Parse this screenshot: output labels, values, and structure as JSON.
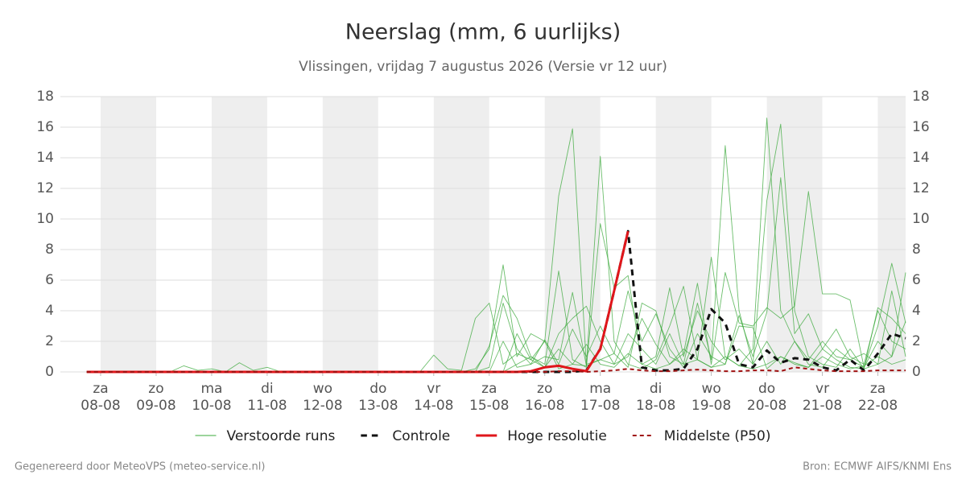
{
  "chart_data": {
    "type": "line",
    "title": "Neerslag (mm, 6 uurlijks)",
    "subtitle": "Vlissingen, vrijdag  7 augustus 2026 (Versie vr 12 uur)",
    "credit": "Gegenereerd door MeteoVPS (meteo-service.nl)",
    "source": "Bron: ECMWF AIFS/KNMI Ens",
    "grid": true,
    "xlim": [
      -0.725,
      14.5
    ],
    "xticks": [
      {
        "value": 0,
        "label": "za",
        "date": "08-08"
      },
      {
        "value": 1,
        "label": "zo",
        "date": "09-08"
      },
      {
        "value": 2,
        "label": "ma",
        "date": "10-08"
      },
      {
        "value": 3,
        "label": "di",
        "date": "11-08"
      },
      {
        "value": 4,
        "label": "wo",
        "date": "12-08"
      },
      {
        "value": 5,
        "label": "do",
        "date": "13-08"
      },
      {
        "value": 6,
        "label": "vr",
        "date": "14-08"
      },
      {
        "value": 7,
        "label": "za",
        "date": "15-08"
      },
      {
        "value": 8,
        "label": "zo",
        "date": "16-08"
      },
      {
        "value": 9,
        "label": "ma",
        "date": "17-08"
      },
      {
        "value": 10,
        "label": "di",
        "date": "18-08"
      },
      {
        "value": 11,
        "label": "wo",
        "date": "19-08"
      },
      {
        "value": 12,
        "label": "do",
        "date": "20-08"
      },
      {
        "value": 13,
        "label": "vr",
        "date": "21-08"
      },
      {
        "value": 14,
        "label": "za",
        "date": "22-08"
      }
    ],
    "ylim": [
      0,
      18
    ],
    "yticks": [
      0,
      2,
      4,
      6,
      8,
      10,
      12,
      14,
      16,
      18
    ],
    "x": [
      -0.25,
      0,
      0.25,
      0.5,
      0.75,
      1,
      1.25,
      1.5,
      1.75,
      2,
      2.25,
      2.5,
      2.75,
      3,
      3.25,
      3.5,
      3.75,
      4,
      4.25,
      4.5,
      4.75,
      5,
      5.25,
      5.5,
      5.75,
      6,
      6.25,
      6.5,
      6.75,
      7,
      7.25,
      7.5,
      7.75,
      8,
      8.25,
      8.5,
      8.75,
      9,
      9.25,
      9.5,
      9.75,
      10,
      10.25,
      10.5,
      10.75,
      11,
      11.25,
      11.5,
      11.75,
      12,
      12.25,
      12.5,
      12.75,
      13,
      13.25,
      13.5,
      13.75,
      14,
      14.25,
      14.5
    ],
    "series": [
      {
        "name": "Verstoorde runs",
        "color": "#3aa83a",
        "width": 0.9,
        "dash": false,
        "members": [
          [
            0,
            0,
            0,
            0,
            0,
            0,
            0,
            0,
            0,
            0,
            0,
            0,
            0,
            0,
            0,
            0,
            0,
            0,
            0,
            0,
            0,
            0,
            0,
            0,
            0,
            1.1,
            0.2,
            0.1,
            3.5,
            4.5,
            0.5,
            1.2,
            0.8,
            2.0,
            11.5,
            15.9,
            0.5,
            0.8,
            1.2,
            0.3,
            4.5,
            4.0,
            1.0,
            0.5,
            0.8,
            0.3,
            1.0,
            0.4,
            0.2,
            0.5,
            1.0,
            0.6,
            0.3,
            1.0,
            0.5,
            0.2,
            0.4,
            1.0,
            0.5,
            0.8
          ],
          [
            0,
            0,
            0,
            0,
            0,
            0,
            0,
            0.4,
            0.1,
            0.2,
            0,
            0.6,
            0.1,
            0.3,
            0,
            0,
            0,
            0,
            0,
            0,
            0,
            0,
            0,
            0,
            0,
            0,
            0,
            0,
            0.2,
            1.5,
            7.0,
            1.0,
            2.5,
            2.0,
            0.2,
            0.5,
            0.4,
            14.1,
            2.0,
            0.5,
            0.2,
            0.8,
            3.0,
            5.6,
            0.8,
            0.3,
            0.5,
            3.0,
            2.9,
            0.2,
            1.0,
            0.5,
            0.3,
            1.5,
            0.8,
            0.3,
            0.2,
            4.2,
            3.5,
            2.5
          ],
          [
            0,
            0,
            0,
            0,
            0,
            0,
            0,
            0,
            0,
            0,
            0,
            0,
            0,
            0,
            0,
            0,
            0,
            0,
            0,
            0,
            0,
            0,
            0,
            0,
            0,
            0,
            0,
            0,
            0,
            1.7,
            5.0,
            3.5,
            1.0,
            0.5,
            6.6,
            0.8,
            0.3,
            9.7,
            5.5,
            6.3,
            0.5,
            0.2,
            0.5,
            1.5,
            0.8,
            7.5,
            1.0,
            0.4,
            1.5,
            16.6,
            4.0,
            2.0,
            0.5,
            0.3,
            1.5,
            0.8,
            0.3,
            2.0,
            1.0,
            6.5
          ],
          [
            0,
            0,
            0,
            0,
            0,
            0,
            0,
            0,
            0,
            0,
            0,
            0,
            0,
            0,
            0,
            0,
            0,
            0,
            0,
            0,
            0,
            0,
            0,
            0,
            0,
            0,
            0,
            0,
            0,
            0,
            2.0,
            0.3,
            0.5,
            1.0,
            0.8,
            5.2,
            0.4,
            0.8,
            0.5,
            2.5,
            1.5,
            0.5,
            2.5,
            0.5,
            4.5,
            0.8,
            14.8,
            4.0,
            0.5,
            11.2,
            16.2,
            4.0,
            1.0,
            0.5,
            0.3,
            1.5,
            0.2,
            0.5,
            5.3,
            1.0
          ],
          [
            0,
            0,
            0,
            0,
            0,
            0,
            0,
            0,
            0,
            0,
            0,
            0,
            0,
            0,
            0,
            0,
            0,
            0,
            0,
            0,
            0,
            0,
            0,
            0,
            0,
            0,
            0,
            0,
            0,
            0,
            0,
            0.5,
            1.0,
            0.3,
            2.5,
            3.5,
            4.3,
            2.0,
            0.5,
            1.0,
            3.5,
            1.8,
            0.5,
            1.2,
            5.8,
            0.5,
            6.5,
            3.2,
            3.0,
            4.2,
            3.5,
            4.3,
            11.8,
            5.1,
            5.1,
            4.7,
            0.3,
            3.0,
            7.1,
            3.2
          ],
          [
            0,
            0,
            0,
            0,
            0,
            0,
            0,
            0,
            0,
            0,
            0,
            0,
            0,
            0,
            0,
            0,
            0,
            0,
            0,
            0,
            0,
            0,
            0,
            0,
            0,
            0,
            0,
            0,
            0,
            0.3,
            4.5,
            1.5,
            0.5,
            2.1,
            0.5,
            2.8,
            1.0,
            3.0,
            1.2,
            5.3,
            2.0,
            3.8,
            1.5,
            0.3,
            2.5,
            1.0,
            0.5,
            3.7,
            1.0,
            3.9,
            12.7,
            2.5,
            3.8,
            1.5,
            2.8,
            1.0,
            0.5,
            4.0,
            2.0,
            1.5
          ],
          [
            0,
            0,
            0,
            0,
            0,
            0,
            0,
            0,
            0,
            0,
            0,
            0,
            0,
            0,
            0,
            0,
            0,
            0,
            0,
            0,
            0,
            0,
            0,
            0,
            0,
            0,
            0,
            0,
            0,
            0,
            0,
            2.5,
            0.8,
            0.3,
            1.5,
            0.5,
            1.8,
            0.5,
            0.3,
            1.2,
            0.5,
            1.0,
            5.5,
            1.0,
            4.0,
            2.0,
            0.8,
            1.5,
            0.5,
            2.0,
            0.5,
            2.0,
            0.8,
            2.0,
            1.0,
            0.8,
            1.2,
            0.5,
            1.0,
            3.3
          ]
        ]
      },
      {
        "name": "Controle",
        "color": "#111111",
        "width": 3,
        "dash": true,
        "values": [
          0,
          0,
          0,
          0,
          0,
          0,
          0,
          0,
          0,
          0,
          0,
          0,
          0,
          0,
          0,
          0,
          0,
          0,
          0,
          0,
          0,
          0,
          0,
          0,
          0,
          0,
          0,
          0,
          0,
          0,
          0,
          0,
          0,
          0,
          0,
          0,
          0.1,
          1.5,
          5.3,
          9.2,
          0.3,
          0.1,
          0.1,
          0.2,
          1.5,
          4.1,
          3.2,
          0.5,
          0.3,
          1.4,
          0.6,
          0.9,
          0.8,
          0.3,
          0.1,
          0.8,
          0.1,
          1.2,
          2.5,
          2.2
        ]
      },
      {
        "name": "Hoge resolutie",
        "color": "#e0161b",
        "width": 3,
        "dash": false,
        "values": [
          0,
          0,
          0,
          0,
          0,
          0,
          0,
          0,
          0,
          0,
          0,
          0,
          0,
          0,
          0,
          0,
          0,
          0,
          0,
          0,
          0,
          0,
          0,
          0,
          0,
          0,
          0,
          0,
          0,
          0,
          0,
          0,
          0.05,
          0.3,
          0.4,
          0.2,
          0.05,
          1.5,
          5.3,
          9.2,
          null,
          null,
          null,
          null,
          null,
          null,
          null,
          null,
          null,
          null,
          null,
          null,
          null,
          null,
          null,
          null,
          null,
          null,
          null,
          null
        ]
      },
      {
        "name": "Middelste (P50)",
        "color": "#a01010",
        "width": 2,
        "dash": true,
        "values": [
          0,
          0,
          0,
          0,
          0,
          0,
          0,
          0,
          0,
          0,
          0,
          0,
          0,
          0,
          0,
          0,
          0,
          0,
          0,
          0,
          0,
          0,
          0,
          0,
          0,
          0,
          0,
          0,
          0,
          0,
          0,
          0,
          0,
          0,
          0.05,
          0.05,
          0,
          0.05,
          0.1,
          0.2,
          0.1,
          0.05,
          0.05,
          0.1,
          0.15,
          0.1,
          0.05,
          0.05,
          0.1,
          0.1,
          0.05,
          0.3,
          0.2,
          0.1,
          0.05,
          0.05,
          0.05,
          0.1,
          0.1,
          0.1
        ]
      }
    ]
  }
}
